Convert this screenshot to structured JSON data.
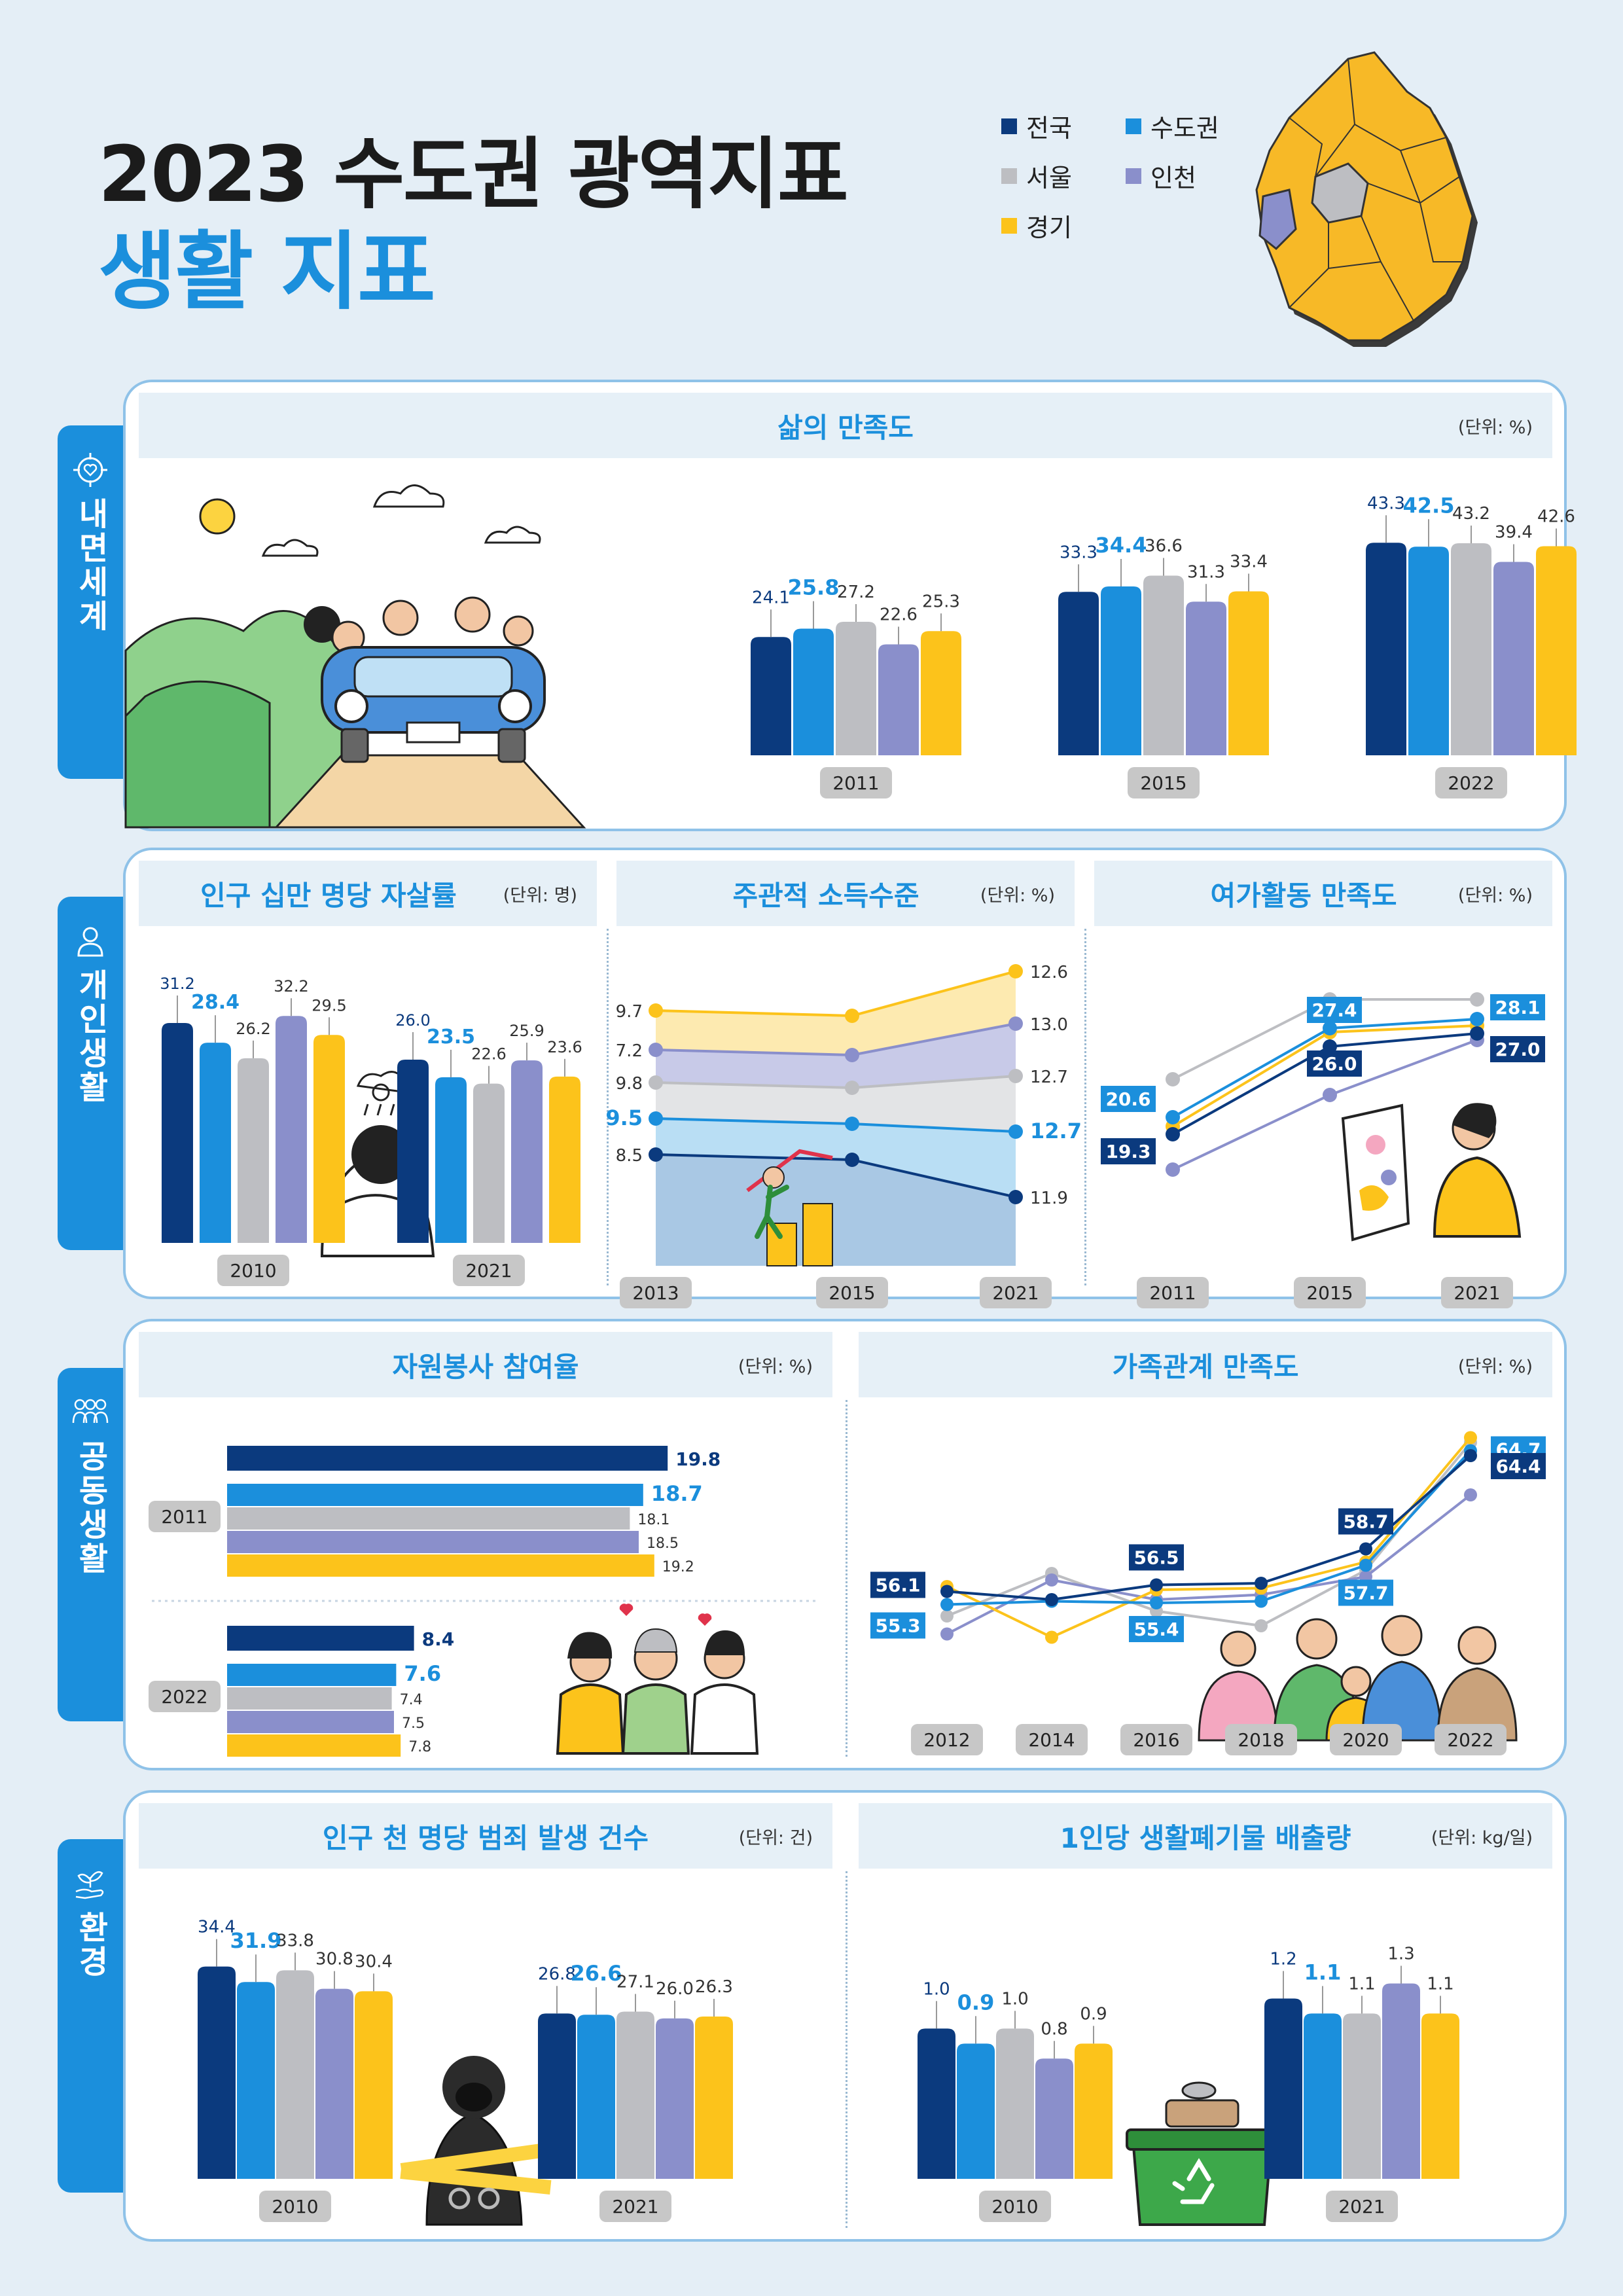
{
  "header": {
    "title": "2023 수도권 광역지표",
    "subtitle": "생활 지표"
  },
  "legend": [
    {
      "name": "전국",
      "color": "#0b3a7e"
    },
    {
      "name": "수도권",
      "color": "#1b8fdc"
    },
    {
      "name": "서울",
      "color": "#bdbec2"
    },
    {
      "name": "인천",
      "color": "#8a8fcb"
    },
    {
      "name": "경기",
      "color": "#fcc31b"
    }
  ],
  "sections": {
    "inner": "내면세계",
    "personal": "개인생활",
    "community": "공동생활",
    "environment": "환경"
  },
  "colors": {
    "nation": "#0b3a7e",
    "capital": "#1b8fdc",
    "seoul": "#bdbec2",
    "incheon": "#8a8fcb",
    "gyeonggi": "#fcc31b"
  },
  "chart_data": [
    {
      "id": "life",
      "type": "bar",
      "title": "삶의 만족도",
      "unit": "(단위: %)",
      "categories": [
        "2011",
        "2015",
        "2022"
      ],
      "series": [
        {
          "name": "전국",
          "values": [
            24.1,
            33.3,
            43.3
          ]
        },
        {
          "name": "수도권",
          "values": [
            25.8,
            34.4,
            42.5
          ]
        },
        {
          "name": "서울",
          "values": [
            27.2,
            36.6,
            43.2
          ]
        },
        {
          "name": "인천",
          "values": [
            22.6,
            31.3,
            39.4
          ]
        },
        {
          "name": "경기",
          "values": [
            25.3,
            33.4,
            42.6
          ]
        }
      ]
    },
    {
      "id": "suicide",
      "type": "bar",
      "title": "인구 십만 명당 자살률",
      "unit": "(단위: 명)",
      "categories": [
        "2010",
        "2021"
      ],
      "series": [
        {
          "name": "전국",
          "values": [
            31.2,
            26.0
          ]
        },
        {
          "name": "수도권",
          "values": [
            28.4,
            23.5
          ]
        },
        {
          "name": "서울",
          "values": [
            26.2,
            22.6
          ]
        },
        {
          "name": "인천",
          "values": [
            32.2,
            25.9
          ]
        },
        {
          "name": "경기",
          "values": [
            29.5,
            23.6
          ]
        }
      ]
    },
    {
      "id": "income",
      "type": "area",
      "title": "주관적 소득수준",
      "unit": "(단위: %)",
      "categories": [
        "2013",
        "2015",
        "2021"
      ],
      "series": [
        {
          "name": "전국",
          "values": [
            8.5,
            8.5,
            11.9
          ]
        },
        {
          "name": "수도권",
          "values": [
            9.5,
            9.4,
            12.7
          ]
        },
        {
          "name": "서울",
          "values": [
            9.8,
            9.8,
            12.7
          ]
        },
        {
          "name": "인천",
          "values": [
            7.2,
            7.2,
            13.0
          ]
        },
        {
          "name": "경기",
          "values": [
            9.7,
            9.6,
            12.6
          ]
        }
      ],
      "labels": {
        "left": [
          "9.7",
          "7.2",
          "9.8",
          "9.5",
          "8.5"
        ],
        "right": [
          "12.6",
          "13.0",
          "12.7",
          "12.7",
          "11.9"
        ]
      }
    },
    {
      "id": "leisure",
      "type": "line",
      "title": "여가활동 만족도",
      "unit": "(단위: %)",
      "categories": [
        "2011",
        "2015",
        "2021"
      ],
      "series": [
        {
          "name": "전국",
          "values": [
            19.3,
            26.0,
            27.0
          ]
        },
        {
          "name": "수도권",
          "values": [
            20.6,
            27.4,
            28.1
          ]
        },
        {
          "name": "서울",
          "values": [
            23.5,
            29.6,
            29.6
          ]
        },
        {
          "name": "인천",
          "values": [
            16.6,
            22.3,
            26.5
          ]
        },
        {
          "name": "경기",
          "values": [
            19.9,
            27.1,
            27.6
          ]
        }
      ]
    },
    {
      "id": "volunteer",
      "type": "bar",
      "orientation": "horizontal",
      "title": "자원봉사 참여율",
      "unit": "(단위: %)",
      "categories": [
        "2011",
        "2022"
      ],
      "series": [
        {
          "name": "전국",
          "values": [
            19.8,
            8.4
          ]
        },
        {
          "name": "수도권",
          "values": [
            18.7,
            7.6
          ]
        },
        {
          "name": "서울",
          "values": [
            18.1,
            7.4
          ]
        },
        {
          "name": "인천",
          "values": [
            18.5,
            7.5
          ]
        },
        {
          "name": "경기",
          "values": [
            19.2,
            7.8
          ]
        }
      ]
    },
    {
      "id": "family",
      "type": "line",
      "title": "가족관계 만족도",
      "unit": "(단위: %)",
      "categories": [
        "2012",
        "2014",
        "2016",
        "2018",
        "2020",
        "2022"
      ],
      "series": [
        {
          "name": "전국",
          "values": [
            56.1,
            55.6,
            56.5,
            56.6,
            58.7,
            64.4
          ]
        },
        {
          "name": "수도권",
          "values": [
            55.3,
            55.5,
            55.4,
            55.5,
            57.7,
            64.7
          ]
        },
        {
          "name": "서울",
          "values": [
            54.6,
            57.2,
            54.9,
            54.0,
            57.4,
            65.2
          ]
        },
        {
          "name": "인천",
          "values": [
            53.5,
            56.8,
            55.6,
            55.9,
            57.0,
            62.0
          ]
        },
        {
          "name": "경기",
          "values": [
            56.4,
            53.3,
            56.2,
            56.3,
            57.9,
            65.5
          ]
        }
      ]
    },
    {
      "id": "crime",
      "type": "bar",
      "title": "인구 천 명당 범죄 발생 건수",
      "unit": "(단위: 건)",
      "categories": [
        "2010",
        "2021"
      ],
      "series": [
        {
          "name": "전국",
          "values": [
            34.4,
            26.8
          ]
        },
        {
          "name": "수도권",
          "values": [
            31.9,
            26.6
          ]
        },
        {
          "name": "서울",
          "values": [
            33.8,
            27.1
          ]
        },
        {
          "name": "인천",
          "values": [
            30.8,
            26.0
          ]
        },
        {
          "name": "경기",
          "values": [
            30.4,
            26.3
          ]
        }
      ]
    },
    {
      "id": "waste",
      "type": "bar",
      "title": "1인당 생활폐기물 배출량",
      "unit": "(단위: kg/일)",
      "categories": [
        "2010",
        "2021"
      ],
      "series": [
        {
          "name": "전국",
          "values": [
            1.0,
            1.2
          ]
        },
        {
          "name": "수도권",
          "values": [
            0.9,
            1.1
          ]
        },
        {
          "name": "서울",
          "values": [
            1.0,
            1.1
          ]
        },
        {
          "name": "인천",
          "values": [
            0.8,
            1.3
          ]
        },
        {
          "name": "경기",
          "values": [
            0.9,
            1.1
          ]
        }
      ]
    }
  ]
}
